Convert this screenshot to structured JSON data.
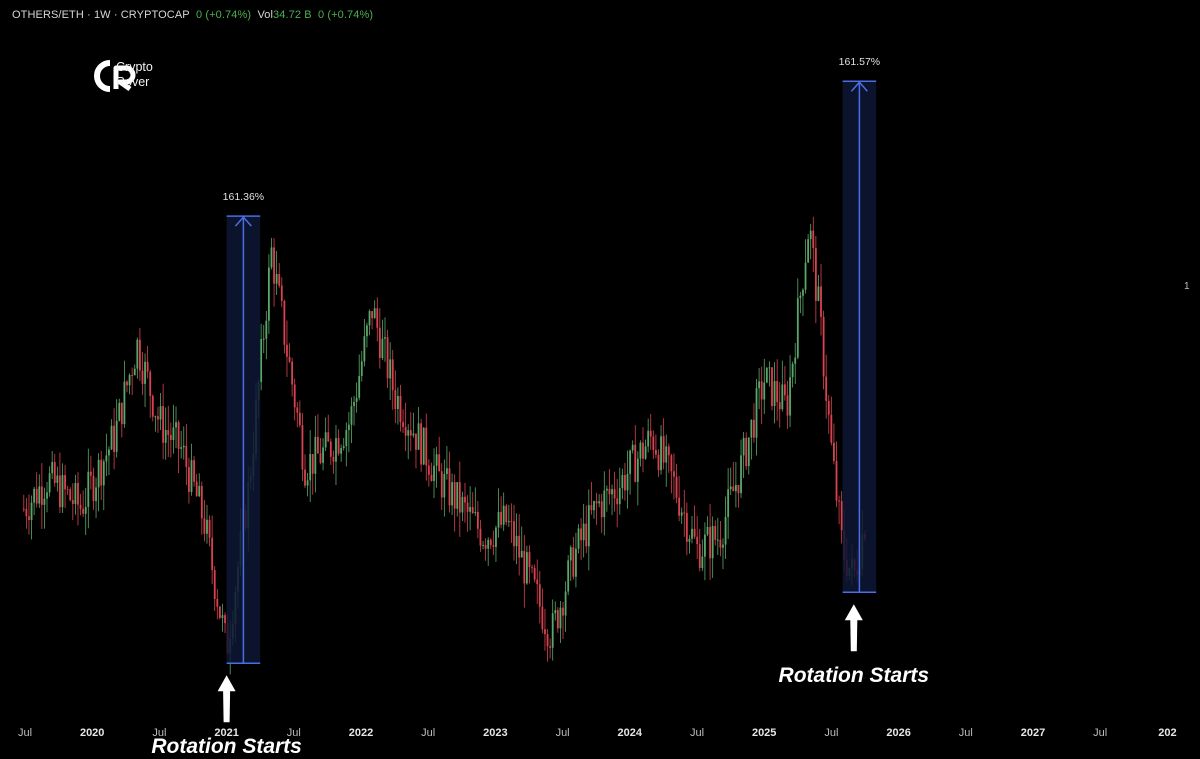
{
  "header": {
    "symbol": "OTHERS/ETH · 1W · CRYPTOCAP",
    "change": "0 (+0.74%)",
    "vol_label": "Vol",
    "vol_value": "34.72 B",
    "vol_change": "0 (+0.74%)"
  },
  "brand": {
    "line1": "Crypto",
    "line2": "Rover"
  },
  "price_axis_label": "1",
  "chart_data": {
    "type": "candlestick",
    "title": "",
    "x_ticks": [
      {
        "label": "Jul",
        "bold": false
      },
      {
        "label": "2020",
        "bold": true
      },
      {
        "label": "Jul",
        "bold": false
      },
      {
        "label": "2021",
        "bold": true
      },
      {
        "label": "Jul",
        "bold": false
      },
      {
        "label": "2022",
        "bold": true
      },
      {
        "label": "Jul",
        "bold": false
      },
      {
        "label": "2023",
        "bold": true
      },
      {
        "label": "Jul",
        "bold": false
      },
      {
        "label": "2024",
        "bold": true
      },
      {
        "label": "Jul",
        "bold": false
      },
      {
        "label": "2025",
        "bold": true
      },
      {
        "label": "Jul",
        "bold": false
      },
      {
        "label": "2026",
        "bold": true
      },
      {
        "label": "Jul",
        "bold": false
      },
      {
        "label": "2027",
        "bold": true
      },
      {
        "label": "Jul",
        "bold": false
      },
      {
        "label": "202",
        "bold": true
      }
    ],
    "x_range": [
      "2019-06",
      "2028-01"
    ],
    "y_range": [
      0.62,
      1.55
    ],
    "trend": [
      [
        "2019-06",
        0.9
      ],
      [
        "2019-09",
        0.96
      ],
      [
        "2019-12",
        0.92
      ],
      [
        "2020-03",
        1.02
      ],
      [
        "2020-05",
        1.15
      ],
      [
        "2020-07",
        1.04
      ],
      [
        "2020-09",
        1.0
      ],
      [
        "2020-11",
        0.9
      ],
      [
        "2021-01",
        0.72
      ],
      [
        "2021-03",
        0.95
      ],
      [
        "2021-05",
        1.28
      ],
      [
        "2021-06",
        1.18
      ],
      [
        "2021-08",
        0.98
      ],
      [
        "2021-10",
        1.0
      ],
      [
        "2021-12",
        1.04
      ],
      [
        "2022-02",
        1.2
      ],
      [
        "2022-04",
        1.08
      ],
      [
        "2022-06",
        1.02
      ],
      [
        "2022-08",
        0.96
      ],
      [
        "2022-10",
        0.92
      ],
      [
        "2022-12",
        0.88
      ],
      [
        "2023-02",
        0.9
      ],
      [
        "2023-04",
        0.82
      ],
      [
        "2023-06",
        0.74
      ],
      [
        "2023-08",
        0.85
      ],
      [
        "2023-10",
        0.92
      ],
      [
        "2023-12",
        0.95
      ],
      [
        "2024-03",
        1.02
      ],
      [
        "2024-05",
        0.95
      ],
      [
        "2024-07",
        0.86
      ],
      [
        "2024-09",
        0.88
      ],
      [
        "2024-11",
        0.98
      ],
      [
        "2025-01",
        1.1
      ],
      [
        "2025-03",
        1.06
      ],
      [
        "2025-05",
        1.32
      ],
      [
        "2025-06",
        1.18
      ],
      [
        "2025-07",
        1.0
      ],
      [
        "2025-08",
        0.86
      ],
      [
        "2025-09",
        0.82
      ],
      [
        "2025-10",
        0.9
      ]
    ],
    "measurements": [
      {
        "label": "161.36%",
        "from_date": "2021-01",
        "to_date": "2021-04",
        "low": 0.7,
        "high": 1.33
      },
      {
        "label": "161.57%",
        "from_date": "2025-08",
        "to_date": "2025-11",
        "low": 0.8,
        "high": 1.52
      }
    ],
    "annotations": [
      {
        "text": "Rotation Starts",
        "date": "2021-01"
      },
      {
        "text": "Rotation Starts",
        "date": "2025-09"
      }
    ],
    "colors": {
      "up": "#5aa869",
      "down": "#d9434f",
      "measure_line": "#4b6de6",
      "measure_fill": "#0e1634"
    }
  }
}
